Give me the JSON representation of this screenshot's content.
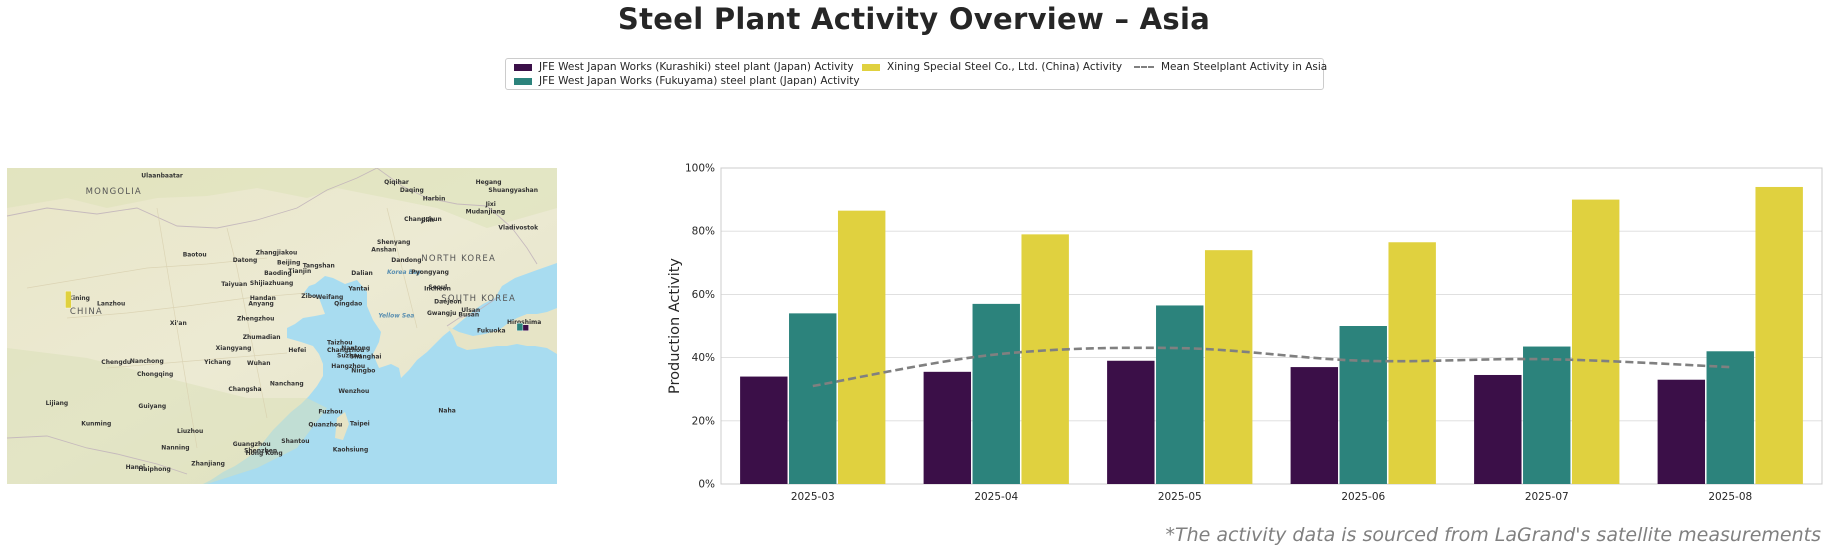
{
  "title": "Steel Plant Activity Overview – Asia",
  "footnote": "*The activity data is sourced from LaGrand's satellite measurements",
  "legend": {
    "items": [
      {
        "label": "JFE West Japan Works (Kurashiki) steel plant (Japan) Activity",
        "color": "#3b0f48"
      },
      {
        "label": "JFE West Japan Works (Fukuyama) steel plant (Japan) Activity",
        "color": "#2c837c"
      },
      {
        "label": "Xining Special Steel Co., Ltd. (China) Activity",
        "color": "#e0d13f"
      },
      {
        "label": "Mean Steelplant Activity in Asia",
        "color": "#808080"
      }
    ]
  },
  "map": {
    "labels": [
      {
        "text": "Ulaanbaatar",
        "lon": 106.9,
        "lat": 47.9
      },
      {
        "text": "MONGOLIA",
        "lon": 103.0,
        "lat": 46.4
      },
      {
        "text": "CHINA",
        "lon": 101.9,
        "lat": 35.3
      },
      {
        "text": "Qiqihar",
        "lon": 123.9,
        "lat": 47.3
      },
      {
        "text": "Hegang",
        "lon": 130.3,
        "lat": 47.3
      },
      {
        "text": "Daqing",
        "lon": 125.0,
        "lat": 46.6
      },
      {
        "text": "Shuangyashan",
        "lon": 131.2,
        "lat": 46.6
      },
      {
        "text": "Harbin",
        "lon": 126.6,
        "lat": 45.8
      },
      {
        "text": "Jixi",
        "lon": 131.0,
        "lat": 45.3
      },
      {
        "text": "Changchun",
        "lon": 125.3,
        "lat": 43.9
      },
      {
        "text": "Jilin",
        "lon": 126.5,
        "lat": 43.8
      },
      {
        "text": "Mudanjiang",
        "lon": 129.6,
        "lat": 44.6
      },
      {
        "text": "Vladivostok",
        "lon": 131.9,
        "lat": 43.1
      },
      {
        "text": "Baotou",
        "lon": 109.8,
        "lat": 40.6
      },
      {
        "text": "Zhangjiakou",
        "lon": 114.9,
        "lat": 40.8
      },
      {
        "text": "Datong",
        "lon": 113.3,
        "lat": 40.1
      },
      {
        "text": "Beijing",
        "lon": 116.4,
        "lat": 39.9
      },
      {
        "text": "Tangshan",
        "lon": 118.2,
        "lat": 39.6
      },
      {
        "text": "Shenyang",
        "lon": 123.4,
        "lat": 41.8
      },
      {
        "text": "Anshan",
        "lon": 123.0,
        "lat": 41.1
      },
      {
        "text": "Baoding",
        "lon": 115.5,
        "lat": 38.9
      },
      {
        "text": "Tianjin",
        "lon": 117.2,
        "lat": 39.1
      },
      {
        "text": "Dalian",
        "lon": 121.6,
        "lat": 38.9
      },
      {
        "text": "Dandong",
        "lon": 124.4,
        "lat": 40.1
      },
      {
        "text": "NORTH KOREA",
        "lon": 126.5,
        "lat": 40.2
      },
      {
        "text": "Korea Bay",
        "lon": 124.1,
        "lat": 39.0
      },
      {
        "text": "Pyongyang",
        "lon": 125.8,
        "lat": 39.0
      },
      {
        "text": "Taiyuan",
        "lon": 112.5,
        "lat": 37.9
      },
      {
        "text": "Shijiazhuang",
        "lon": 114.5,
        "lat": 38.0
      },
      {
        "text": "Xining",
        "lon": 101.8,
        "lat": 36.6
      },
      {
        "text": "Lanzhou",
        "lon": 103.8,
        "lat": 36.1
      },
      {
        "text": "Handan",
        "lon": 114.5,
        "lat": 36.6
      },
      {
        "text": "Anyang",
        "lon": 114.4,
        "lat": 36.1
      },
      {
        "text": "Weifang",
        "lon": 119.1,
        "lat": 36.7
      },
      {
        "text": "Yantai",
        "lon": 121.4,
        "lat": 37.5
      },
      {
        "text": "Zibo",
        "lon": 118.1,
        "lat": 36.8
      },
      {
        "text": "Qingdao",
        "lon": 120.4,
        "lat": 36.1
      },
      {
        "text": "Incheon",
        "lon": 126.7,
        "lat": 37.5
      },
      {
        "text": "Seoul",
        "lon": 127.0,
        "lat": 37.6
      },
      {
        "text": "SOUTH KOREA",
        "lon": 127.9,
        "lat": 36.5
      },
      {
        "text": "Daejeon",
        "lon": 127.4,
        "lat": 36.3
      },
      {
        "text": "Xi'an",
        "lon": 108.9,
        "lat": 34.3
      },
      {
        "text": "Zhengzhou",
        "lon": 113.6,
        "lat": 34.7
      },
      {
        "text": "Yellow Sea",
        "lon": 123.5,
        "lat": 35.0
      },
      {
        "text": "Ulsan",
        "lon": 129.3,
        "lat": 35.5
      },
      {
        "text": "Gwangju",
        "lon": 126.9,
        "lat": 35.2
      },
      {
        "text": "Busan",
        "lon": 129.1,
        "lat": 35.1
      },
      {
        "text": "Hiroshima",
        "lon": 132.5,
        "lat": 34.4
      },
      {
        "text": "Fukuoka",
        "lon": 130.4,
        "lat": 33.6
      },
      {
        "text": "Xiangyang",
        "lon": 112.1,
        "lat": 32.0
      },
      {
        "text": "Zhumadian",
        "lon": 114.0,
        "lat": 33.0
      },
      {
        "text": "Taizhou",
        "lon": 119.9,
        "lat": 32.5
      },
      {
        "text": "Hefei",
        "lon": 117.2,
        "lat": 31.8
      },
      {
        "text": "Changzhou",
        "lon": 119.9,
        "lat": 31.8
      },
      {
        "text": "Nantong",
        "lon": 120.9,
        "lat": 32.0
      },
      {
        "text": "Chengdu",
        "lon": 104.1,
        "lat": 30.7
      },
      {
        "text": "Nanchong",
        "lon": 106.1,
        "lat": 30.8
      },
      {
        "text": "Yichang",
        "lon": 111.3,
        "lat": 30.7
      },
      {
        "text": "Wuhan",
        "lon": 114.3,
        "lat": 30.6
      },
      {
        "text": "Suzhou",
        "lon": 120.6,
        "lat": 31.3
      },
      {
        "text": "Shanghai",
        "lon": 121.5,
        "lat": 31.2
      },
      {
        "text": "Hangzhou",
        "lon": 120.2,
        "lat": 30.3
      },
      {
        "text": "Ningbo",
        "lon": 121.6,
        "lat": 29.9
      },
      {
        "text": "Chongqing",
        "lon": 106.6,
        "lat": 29.6
      },
      {
        "text": "Nanchang",
        "lon": 115.9,
        "lat": 28.7
      },
      {
        "text": "Changsha",
        "lon": 113.0,
        "lat": 28.2
      },
      {
        "text": "Wenzhou",
        "lon": 120.7,
        "lat": 28.0
      },
      {
        "text": "Lijiang",
        "lon": 100.2,
        "lat": 26.9
      },
      {
        "text": "Guiyang",
        "lon": 106.7,
        "lat": 26.6
      },
      {
        "text": "Fuzhou",
        "lon": 119.3,
        "lat": 26.1
      },
      {
        "text": "Taipei",
        "lon": 121.5,
        "lat": 25.0
      },
      {
        "text": "Naha",
        "lon": 127.7,
        "lat": 26.2
      },
      {
        "text": "Kunming",
        "lon": 102.7,
        "lat": 25.0
      },
      {
        "text": "Liuzhou",
        "lon": 109.4,
        "lat": 24.3
      },
      {
        "text": "Quanzhou",
        "lon": 118.6,
        "lat": 24.9
      },
      {
        "text": "Guangzhou",
        "lon": 113.3,
        "lat": 23.1
      },
      {
        "text": "Shantou",
        "lon": 116.7,
        "lat": 23.4
      },
      {
        "text": "Nanning",
        "lon": 108.3,
        "lat": 22.8
      },
      {
        "text": "Shenzhen",
        "lon": 114.1,
        "lat": 22.5
      },
      {
        "text": "Kaohsiung",
        "lon": 120.3,
        "lat": 22.6
      },
      {
        "text": "Hong Kong",
        "lon": 114.2,
        "lat": 22.3
      },
      {
        "text": "Hanoi",
        "lon": 105.8,
        "lat": 21.0
      },
      {
        "text": "Haiphong",
        "lon": 106.7,
        "lat": 20.8
      },
      {
        "text": "Zhanjiang",
        "lon": 110.4,
        "lat": 21.3
      }
    ],
    "markers": [
      {
        "name": "Xining Special Steel Co., Ltd.",
        "lon": 101.8,
        "lat": 36.6,
        "value": 0.94,
        "color": "#e0d13f"
      },
      {
        "name": "JFE West Japan Works (Kurashiki)",
        "lon": 133.8,
        "lat": 34.5,
        "value": 0.33,
        "color": "#3b0f48"
      },
      {
        "name": "JFE West Japan Works (Fukuyama)",
        "lon": 133.4,
        "lat": 34.5,
        "value": 0.42,
        "color": "#2c837c"
      }
    ]
  },
  "chart_data": {
    "type": "bar",
    "categories": [
      "2025-03",
      "2025-04",
      "2025-05",
      "2025-06",
      "2025-07",
      "2025-08"
    ],
    "series": [
      {
        "name": "JFE West Japan Works (Kurashiki) steel plant (Japan) Activity",
        "color": "#3b0f48",
        "values": [
          34,
          35.5,
          39,
          37,
          34.5,
          33
        ]
      },
      {
        "name": "JFE West Japan Works (Fukuyama) steel plant (Japan) Activity",
        "color": "#2c837c",
        "values": [
          54,
          57,
          56.5,
          50,
          43.5,
          42
        ]
      },
      {
        "name": "Xining Special Steel Co., Ltd. (China) Activity",
        "color": "#e0d13f",
        "values": [
          86.5,
          79,
          74,
          76.5,
          90,
          94
        ]
      }
    ],
    "mean_line": {
      "name": "Mean Steelplant Activity in Asia",
      "color": "#808080",
      "values": [
        31,
        41,
        43,
        39,
        39.5,
        37
      ]
    },
    "title": "",
    "xlabel": "",
    "ylabel": "Production Activity",
    "ylim": [
      0,
      100
    ],
    "yticks": [
      "0%",
      "20%",
      "40%",
      "60%",
      "80%",
      "100%"
    ],
    "ytick_values": [
      0,
      20,
      40,
      60,
      80,
      100
    ],
    "grid": true,
    "legend_position": "top-center"
  }
}
